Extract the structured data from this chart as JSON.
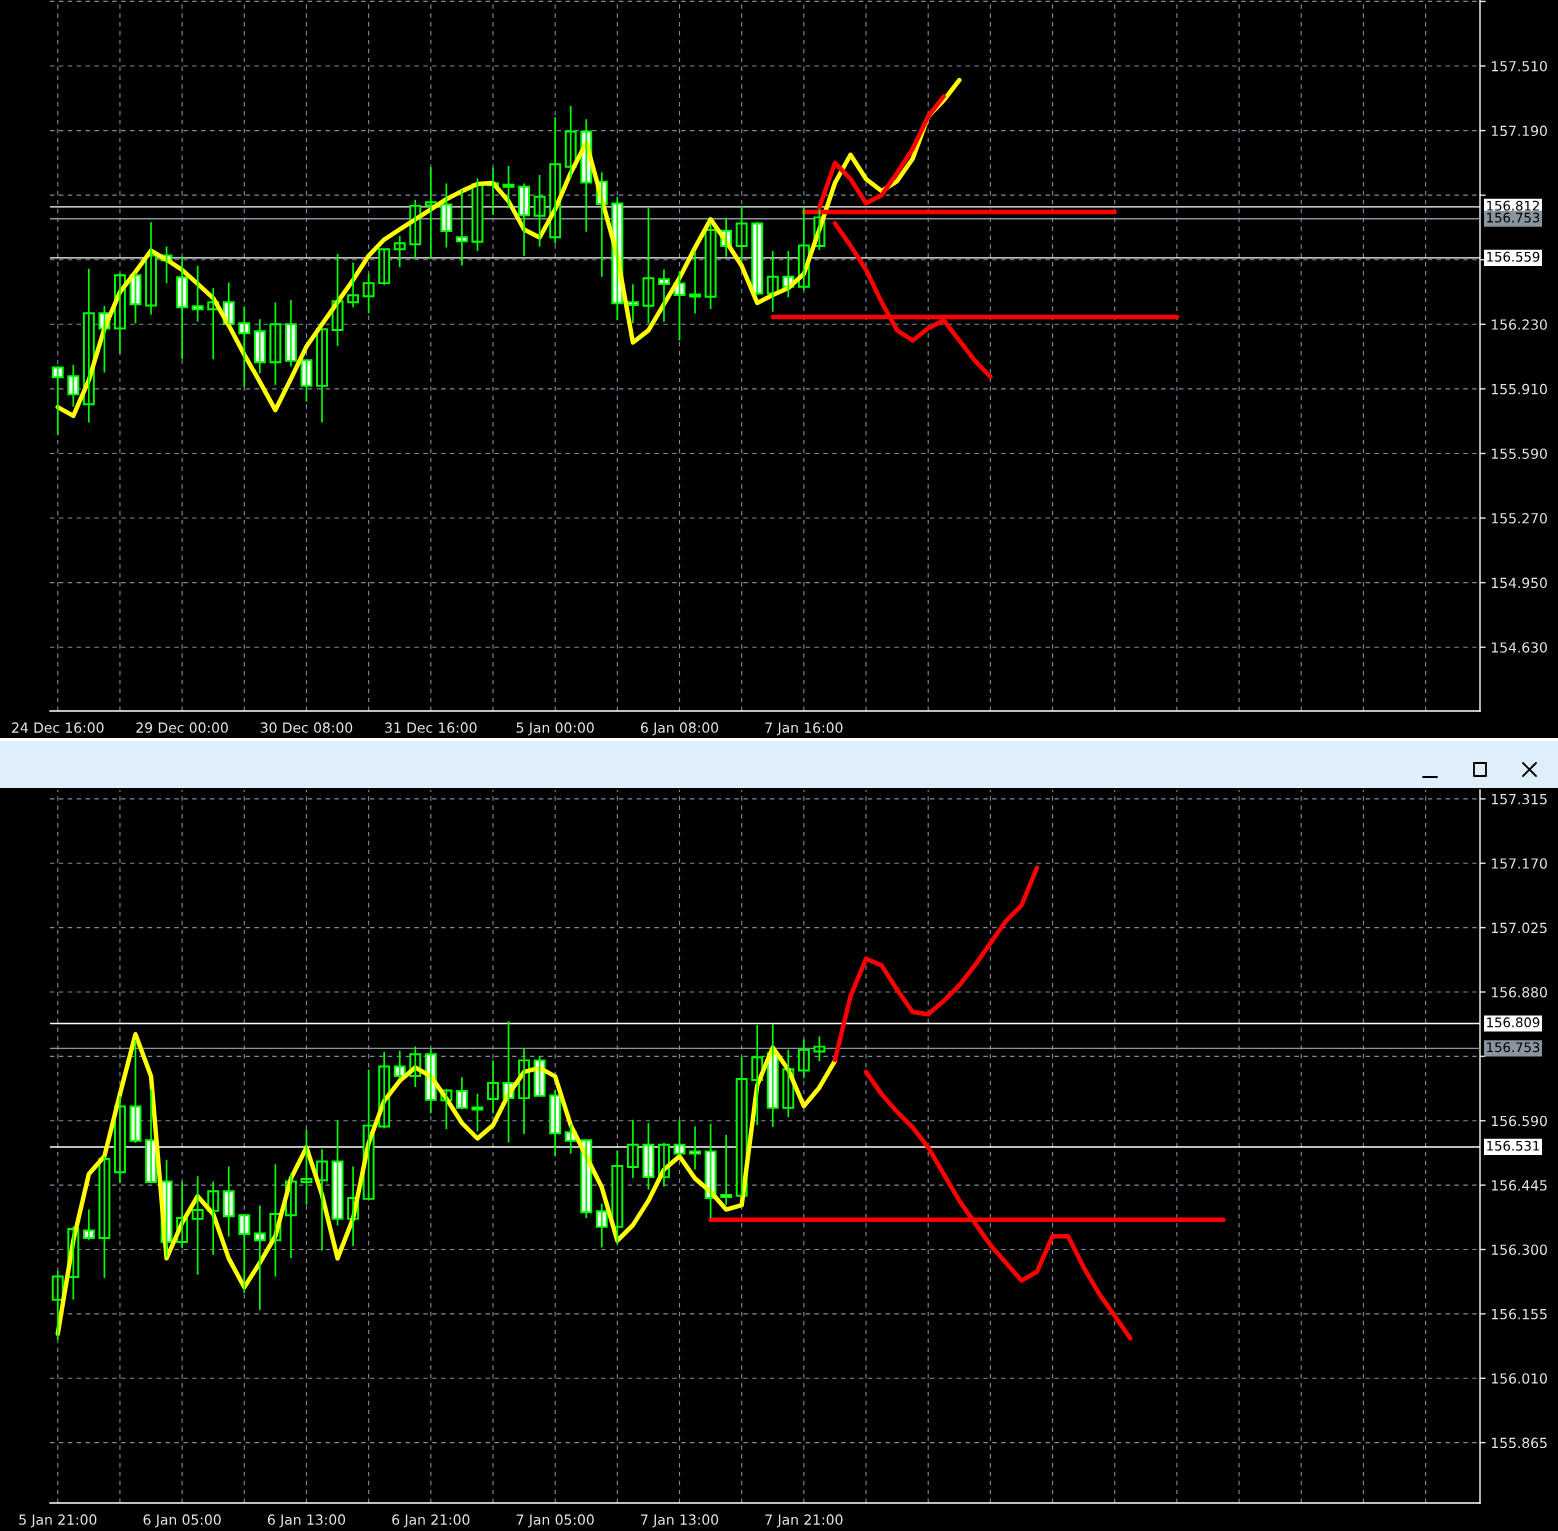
{
  "chart_data": [
    {
      "type": "candlestick",
      "color": "#00ff00",
      "grid": true,
      "categories": [
        "24 Dec 16:00",
        null,
        null,
        null,
        null,
        null,
        null,
        null,
        "29 Dec 00:00",
        null,
        null,
        null,
        null,
        null,
        null,
        null,
        "30 Dec 08:00",
        null,
        null,
        null,
        null,
        null,
        null,
        null,
        "31 Dec 16:00",
        null,
        null,
        null,
        null,
        null,
        null,
        null,
        "5 Jan 00:00",
        null,
        null,
        null,
        null,
        null,
        null,
        null,
        "6 Jan 08:00",
        null,
        null,
        null,
        null,
        null,
        null,
        null,
        "7 Jan 16:00",
        null,
        null,
        null,
        null,
        null,
        null,
        null,
        null,
        null,
        null,
        null,
        null,
        null,
        null,
        null,
        null,
        null,
        null,
        null,
        null,
        null,
        null,
        null,
        null,
        null,
        null,
        null,
        null,
        null,
        null,
        null,
        null,
        null,
        null,
        null,
        null,
        null,
        null,
        null,
        null,
        null,
        null,
        null
      ],
      "ohlc": [
        [
          156.016,
          156.021,
          155.682,
          155.968
        ],
        [
          155.973,
          156.029,
          155.822,
          155.883
        ],
        [
          155.834,
          156.505,
          155.743,
          156.285
        ],
        [
          156.285,
          156.321,
          155.991,
          156.209
        ],
        [
          156.209,
          156.483,
          156.087,
          156.473
        ],
        [
          156.473,
          156.483,
          156.235,
          156.329
        ],
        [
          156.323,
          156.736,
          156.277,
          156.571
        ],
        [
          156.571,
          156.615,
          156.433,
          156.547
        ],
        [
          156.463,
          156.566,
          156.057,
          156.315
        ],
        [
          156.32,
          156.519,
          156.244,
          156.305
        ],
        [
          156.305,
          156.409,
          156.057,
          156.339
        ],
        [
          156.339,
          156.437,
          156.232,
          156.232
        ],
        [
          156.235,
          156.318,
          155.918,
          156.186
        ],
        [
          156.196,
          156.255,
          155.988,
          156.042
        ],
        [
          156.042,
          156.338,
          155.93,
          156.23
        ],
        [
          156.23,
          156.351,
          156.021,
          156.049
        ],
        [
          156.052,
          156.054,
          155.847,
          155.925
        ],
        [
          155.925,
          156.206,
          155.743,
          156.206
        ],
        [
          156.202,
          156.579,
          156.123,
          156.344
        ],
        [
          156.339,
          156.536,
          156.315,
          156.374
        ],
        [
          156.369,
          156.48,
          156.285,
          156.434
        ],
        [
          156.434,
          156.602,
          156.424,
          156.602
        ],
        [
          156.602,
          156.668,
          156.513,
          156.632
        ],
        [
          156.627,
          156.847,
          156.557,
          156.817
        ],
        [
          156.819,
          157.008,
          156.557,
          156.835
        ],
        [
          156.824,
          156.928,
          156.611,
          156.692
        ],
        [
          156.661,
          156.895,
          156.521,
          156.641
        ],
        [
          156.639,
          156.953,
          156.593,
          156.924
        ],
        [
          156.929,
          157.006,
          156.772,
          156.919
        ],
        [
          156.922,
          157.014,
          156.805,
          156.912
        ],
        [
          156.912,
          156.928,
          156.568,
          156.77
        ],
        [
          156.768,
          156.97,
          156.615,
          156.862
        ],
        [
          156.661,
          157.256,
          156.631,
          157.023
        ],
        [
          157.011,
          157.312,
          156.953,
          157.185
        ],
        [
          157.185,
          157.246,
          156.689,
          156.933
        ],
        [
          156.937,
          156.983,
          156.466,
          156.826
        ],
        [
          156.829,
          156.862,
          156.251,
          156.334
        ],
        [
          156.339,
          156.428,
          156.235,
          156.326
        ],
        [
          156.322,
          156.805,
          156.235,
          156.458
        ],
        [
          156.454,
          156.502,
          156.243,
          156.43
        ],
        [
          156.433,
          156.491,
          156.149,
          156.375
        ],
        [
          156.378,
          156.593,
          156.284,
          156.368
        ],
        [
          156.367,
          156.73,
          156.306,
          156.697
        ],
        [
          156.694,
          156.758,
          156.565,
          156.618
        ],
        [
          156.618,
          156.816,
          156.54,
          156.73
        ],
        [
          156.73,
          156.738,
          156.375,
          156.383
        ],
        [
          156.383,
          156.593,
          156.293,
          156.466
        ],
        [
          156.466,
          156.593,
          156.364,
          156.416
        ],
        [
          156.416,
          156.813,
          156.4,
          156.621
        ],
        [
          156.618,
          156.8,
          156.598,
          156.76
        ],
        null,
        null,
        null,
        null,
        null,
        null,
        null,
        null,
        null,
        null,
        null,
        null,
        null,
        null,
        null,
        null,
        null,
        null,
        null,
        null,
        null,
        null,
        null,
        null,
        null,
        null,
        null,
        null,
        null,
        null,
        null,
        null,
        null,
        null,
        null,
        null,
        null,
        null,
        null,
        null,
        null,
        null
      ],
      "ylim": [
        154.314,
        157.837
      ],
      "yticks": [
        {
          "value": 154.63,
          "label": "154.630"
        },
        {
          "value": 154.95,
          "label": "154.950"
        },
        {
          "value": 155.27,
          "label": "155.270"
        },
        {
          "value": 155.59,
          "label": "155.590"
        },
        {
          "value": 155.91,
          "label": "155.910"
        },
        {
          "value": 156.23,
          "label": "156.230"
        },
        {
          "value": 156.55,
          "label": null
        },
        {
          "value": 156.87,
          "label": null
        },
        {
          "value": 157.19,
          "label": "157.190"
        },
        {
          "value": 157.51,
          "label": "157.510"
        },
        {
          "value": 157.83,
          "label": null
        }
      ],
      "ref_lines": [
        {
          "axis": "y",
          "value": 156.812,
          "label": "156.812",
          "color": "#ffffff"
        },
        {
          "axis": "y",
          "value": 156.753,
          "label": "156.753",
          "color": "#8a949e"
        },
        {
          "axis": "y",
          "value": 156.559,
          "label": "156.559",
          "color": "#ffffff"
        }
      ],
      "series": [
        {
          "type": "line",
          "color": "#ffff00",
          "values": [
            155.82,
            155.776,
            155.954,
            156.21,
            156.39,
            156.49,
            156.595,
            156.55,
            156.5,
            156.43,
            156.36,
            156.225,
            156.08,
            155.945,
            155.805,
            155.96,
            156.12,
            156.23,
            156.34,
            156.45,
            156.57,
            156.65,
            156.7,
            156.75,
            156.8,
            156.85,
            156.89,
            156.925,
            156.93,
            156.84,
            156.7,
            156.66,
            156.8,
            156.98,
            157.13,
            156.85,
            156.57,
            156.14,
            156.2,
            156.33,
            156.46,
            156.61,
            156.75,
            156.64,
            156.52,
            156.336,
            156.375,
            156.41,
            156.48,
            156.7,
            156.93,
            157.07,
            156.95,
            156.89,
            156.94,
            157.05,
            157.26,
            157.34,
            157.44,
            null,
            null,
            null,
            null,
            null,
            null,
            null,
            null,
            null,
            null,
            null,
            null,
            null,
            null,
            null,
            null,
            null,
            null,
            null,
            null,
            null,
            null,
            null,
            null,
            null,
            null,
            null,
            null,
            null,
            null,
            null,
            null,
            null
          ]
        },
        {
          "type": "line",
          "color": "#ff0000",
          "values": [
            null,
            null,
            null,
            null,
            null,
            null,
            null,
            null,
            null,
            null,
            null,
            null,
            null,
            null,
            null,
            null,
            null,
            null,
            null,
            null,
            null,
            null,
            null,
            null,
            null,
            null,
            null,
            null,
            null,
            null,
            null,
            null,
            null,
            null,
            null,
            null,
            null,
            null,
            null,
            null,
            null,
            null,
            null,
            null,
            null,
            null,
            null,
            null,
            null,
            156.81,
            157.03,
            156.95,
            156.83,
            156.87,
            156.98,
            157.1,
            157.26,
            157.36,
            null,
            null,
            null,
            null,
            null,
            null,
            null,
            null,
            null,
            null,
            null,
            null,
            null,
            null,
            null,
            null,
            null,
            null,
            null,
            null,
            null,
            null,
            null,
            null,
            null,
            null,
            null,
            null,
            null,
            null,
            null,
            null,
            null,
            null
          ]
        },
        {
          "type": "line",
          "color": "#ff0000",
          "values": [
            null,
            null,
            null,
            null,
            null,
            null,
            null,
            null,
            null,
            null,
            null,
            null,
            null,
            null,
            null,
            null,
            null,
            null,
            null,
            null,
            null,
            null,
            null,
            null,
            null,
            null,
            null,
            null,
            null,
            null,
            null,
            null,
            null,
            null,
            null,
            null,
            null,
            null,
            null,
            null,
            null,
            null,
            null,
            null,
            null,
            null,
            null,
            null,
            null,
            null,
            156.73,
            156.62,
            156.5,
            156.34,
            156.2,
            156.15,
            156.21,
            156.25,
            156.15,
            156.05,
            155.97,
            null,
            null,
            null,
            null,
            null,
            null,
            null,
            null,
            null,
            null,
            null,
            null,
            null,
            null,
            null,
            null,
            null,
            null,
            null,
            null,
            null,
            null,
            null,
            null,
            null,
            null,
            null,
            null,
            null,
            null,
            null
          ]
        },
        {
          "type": "line",
          "color": "#ff0000",
          "values": [
            null,
            null,
            null,
            null,
            null,
            null,
            null,
            null,
            null,
            null,
            null,
            null,
            null,
            null,
            null,
            null,
            null,
            null,
            null,
            null,
            null,
            null,
            null,
            null,
            null,
            null,
            null,
            null,
            null,
            null,
            null,
            null,
            null,
            null,
            null,
            null,
            null,
            null,
            null,
            null,
            null,
            null,
            null,
            null,
            null,
            null,
            null,
            null,
            156.787,
            156.787,
            156.787,
            156.787,
            156.787,
            156.787,
            156.787,
            156.787,
            156.787,
            156.787,
            156.787,
            156.787,
            156.787,
            156.787,
            156.787,
            156.787,
            156.787,
            156.787,
            156.787,
            156.787,
            156.787,
            null,
            null,
            null,
            null,
            null,
            null,
            null,
            null,
            null,
            null,
            null,
            null,
            null,
            null,
            null,
            null,
            null,
            null,
            null,
            null,
            null,
            null,
            null
          ]
        },
        {
          "type": "line",
          "color": "#ff0000",
          "values": [
            null,
            null,
            null,
            null,
            null,
            null,
            null,
            null,
            null,
            null,
            null,
            null,
            null,
            null,
            null,
            null,
            null,
            null,
            null,
            null,
            null,
            null,
            null,
            null,
            null,
            null,
            null,
            null,
            null,
            null,
            null,
            null,
            null,
            null,
            null,
            null,
            null,
            null,
            null,
            null,
            null,
            null,
            null,
            null,
            null,
            null,
            156.266,
            156.266,
            156.266,
            156.266,
            156.266,
            156.266,
            156.266,
            156.266,
            156.266,
            156.266,
            156.266,
            156.266,
            156.266,
            156.266,
            156.266,
            156.266,
            156.266,
            156.266,
            156.266,
            156.266,
            156.266,
            156.266,
            156.266,
            156.266,
            156.266,
            156.266,
            156.266,
            null,
            null,
            null,
            null,
            null,
            null,
            null,
            null,
            null,
            null,
            null,
            null,
            null,
            null,
            null,
            null,
            null,
            null,
            null
          ]
        }
      ]
    },
    {
      "type": "candlestick",
      "color": "#00ff00",
      "grid": true,
      "categories": [
        "5 Jan 21:00",
        null,
        null,
        null,
        null,
        null,
        null,
        null,
        "6 Jan 05:00",
        null,
        null,
        null,
        null,
        null,
        null,
        null,
        "6 Jan 13:00",
        null,
        null,
        null,
        null,
        null,
        null,
        null,
        "6 Jan 21:00",
        null,
        null,
        null,
        null,
        null,
        null,
        null,
        "7 Jan 05:00",
        null,
        null,
        null,
        null,
        null,
        null,
        null,
        "7 Jan 13:00",
        null,
        null,
        null,
        null,
        null,
        null,
        null,
        "7 Jan 21:00",
        null,
        null,
        null,
        null,
        null,
        null,
        null,
        null,
        null,
        null,
        null,
        null,
        null,
        null,
        null,
        null,
        null,
        null,
        null,
        null,
        null,
        null,
        null,
        null,
        null,
        null,
        null,
        null,
        null,
        null,
        null,
        null,
        null,
        null,
        null,
        null,
        null,
        null,
        null,
        null,
        null,
        null,
        null
      ],
      "ohlc": [
        [
          156.187,
          156.251,
          156.097,
          156.239
        ],
        [
          156.238,
          156.352,
          156.187,
          156.346
        ],
        [
          156.343,
          156.39,
          156.322,
          156.326
        ],
        [
          156.326,
          156.51,
          156.236,
          156.504
        ],
        [
          156.474,
          156.645,
          156.45,
          156.622
        ],
        [
          156.622,
          156.772,
          156.54,
          156.545
        ],
        [
          156.546,
          156.66,
          156.45,
          156.452
        ],
        [
          156.453,
          156.502,
          156.284,
          156.317
        ],
        [
          156.317,
          156.453,
          156.303,
          156.371
        ],
        [
          156.369,
          156.465,
          156.243,
          156.389
        ],
        [
          156.387,
          156.453,
          156.288,
          156.431
        ],
        [
          156.431,
          156.487,
          156.329,
          156.375
        ],
        [
          156.377,
          156.378,
          156.202,
          156.335
        ],
        [
          156.336,
          156.399,
          156.164,
          156.321
        ],
        [
          156.321,
          156.492,
          156.239,
          156.38
        ],
        [
          156.377,
          156.471,
          156.281,
          156.453
        ],
        [
          156.452,
          156.57,
          156.401,
          156.459
        ],
        [
          156.456,
          156.526,
          156.298,
          156.498
        ],
        [
          156.498,
          156.59,
          156.354,
          156.369
        ],
        [
          156.369,
          156.487,
          156.308,
          156.416
        ],
        [
          156.414,
          156.705,
          156.412,
          156.579
        ],
        [
          156.577,
          156.745,
          156.573,
          156.712
        ],
        [
          156.712,
          156.748,
          156.686,
          156.691
        ],
        [
          156.691,
          156.757,
          156.666,
          156.74
        ],
        [
          156.74,
          156.754,
          156.607,
          156.637
        ],
        [
          156.636,
          156.661,
          156.571,
          156.658
        ],
        [
          156.657,
          156.688,
          156.616,
          156.619
        ],
        [
          156.62,
          156.651,
          156.566,
          156.615
        ],
        [
          156.639,
          156.726,
          156.607,
          156.675
        ],
        [
          156.675,
          156.814,
          156.541,
          156.641
        ],
        [
          156.641,
          156.754,
          156.56,
          156.726
        ],
        [
          156.726,
          156.735,
          156.645,
          156.646
        ],
        [
          156.647,
          156.659,
          156.51,
          156.562
        ],
        [
          156.564,
          156.581,
          156.516,
          156.545
        ],
        [
          156.546,
          156.547,
          156.371,
          156.384
        ],
        [
          156.386,
          156.403,
          156.305,
          156.351
        ],
        [
          156.351,
          156.523,
          156.311,
          156.488
        ],
        [
          156.486,
          156.592,
          156.461,
          156.536
        ],
        [
          156.536,
          156.585,
          156.435,
          156.463
        ],
        [
          156.463,
          156.54,
          156.442,
          156.536
        ],
        [
          156.536,
          156.592,
          156.513,
          156.516
        ],
        [
          156.521,
          156.577,
          156.48,
          156.516
        ],
        [
          156.521,
          156.583,
          156.371,
          156.416
        ],
        [
          156.423,
          156.558,
          156.401,
          156.418
        ],
        [
          156.421,
          156.735,
          156.42,
          156.684
        ],
        [
          156.682,
          156.806,
          156.58,
          156.733
        ],
        [
          156.742,
          156.808,
          156.576,
          156.619
        ],
        [
          156.619,
          156.75,
          156.598,
          156.706
        ],
        [
          156.703,
          156.773,
          156.686,
          156.75
        ],
        [
          156.746,
          156.78,
          156.724,
          156.757
        ],
        null,
        null,
        null,
        null,
        null,
        null,
        null,
        null,
        null,
        null,
        null,
        null,
        null,
        null,
        null,
        null,
        null,
        null,
        null,
        null,
        null,
        null,
        null,
        null,
        null,
        null,
        null,
        null,
        null,
        null,
        null,
        null,
        null,
        null,
        null,
        null,
        null,
        null,
        null,
        null,
        null,
        null
      ],
      "ylim": [
        155.729,
        157.335
      ],
      "yticks": [
        {
          "value": 155.865,
          "label": "155.865"
        },
        {
          "value": 156.01,
          "label": "156.010"
        },
        {
          "value": 156.155,
          "label": "156.155"
        },
        {
          "value": 156.3,
          "label": "156.300"
        },
        {
          "value": 156.445,
          "label": "156.445"
        },
        {
          "value": 156.59,
          "label": "156.590"
        },
        {
          "value": 156.735,
          "label": null
        },
        {
          "value": 156.88,
          "label": "156.880"
        },
        {
          "value": 157.025,
          "label": "157.025"
        },
        {
          "value": 157.17,
          "label": "157.170"
        },
        {
          "value": 157.315,
          "label": "157.315"
        }
      ],
      "ref_lines": [
        {
          "axis": "y",
          "value": 156.809,
          "label": "156.809",
          "color": "#ffffff"
        },
        {
          "axis": "y",
          "value": 156.753,
          "label": "156.753",
          "color": "#8a949e"
        },
        {
          "axis": "y",
          "value": 156.531,
          "label": "156.531",
          "color": "#ffffff"
        }
      ],
      "series": [
        {
          "type": "line",
          "color": "#ffff00",
          "values": [
            156.11,
            156.32,
            156.47,
            156.51,
            156.65,
            156.785,
            156.69,
            156.28,
            156.36,
            156.42,
            156.38,
            156.28,
            156.215,
            156.27,
            156.33,
            156.46,
            156.53,
            156.423,
            156.28,
            156.37,
            156.54,
            156.635,
            156.68,
            156.71,
            156.69,
            156.64,
            156.585,
            156.55,
            156.58,
            156.65,
            156.7,
            156.709,
            156.69,
            156.58,
            156.51,
            156.44,
            156.32,
            156.355,
            156.41,
            156.48,
            156.51,
            156.46,
            156.43,
            156.39,
            156.4,
            156.67,
            156.755,
            156.705,
            156.623,
            156.665,
            156.725,
            null,
            null,
            null,
            null,
            null,
            null,
            null,
            null,
            null,
            null,
            null,
            null,
            null,
            null,
            null,
            null,
            null,
            null,
            null,
            null,
            null,
            null,
            null,
            null,
            null,
            null,
            null,
            null,
            null,
            null,
            null,
            null,
            null,
            null,
            null,
            null,
            null,
            null,
            null,
            null,
            null
          ]
        },
        {
          "type": "line",
          "color": "#ff0000",
          "values": [
            null,
            null,
            null,
            null,
            null,
            null,
            null,
            null,
            null,
            null,
            null,
            null,
            null,
            null,
            null,
            null,
            null,
            null,
            null,
            null,
            null,
            null,
            null,
            null,
            null,
            null,
            null,
            null,
            null,
            null,
            null,
            null,
            null,
            null,
            null,
            null,
            null,
            null,
            null,
            null,
            null,
            null,
            null,
            null,
            null,
            null,
            null,
            null,
            null,
            null,
            156.727,
            156.87,
            156.955,
            156.94,
            156.885,
            156.835,
            156.83,
            156.86,
            156.895,
            156.94,
            156.99,
            157.04,
            157.075,
            157.16,
            null,
            null,
            null,
            null,
            null,
            null,
            null,
            null,
            null,
            null,
            null,
            null,
            null,
            null,
            null,
            null,
            null,
            null,
            null,
            null,
            null,
            null,
            null,
            null,
            null,
            null,
            null,
            null
          ]
        },
        {
          "type": "line",
          "color": "#ff0000",
          "values": [
            null,
            null,
            null,
            null,
            null,
            null,
            null,
            null,
            null,
            null,
            null,
            null,
            null,
            null,
            null,
            null,
            null,
            null,
            null,
            null,
            null,
            null,
            null,
            null,
            null,
            null,
            null,
            null,
            null,
            null,
            null,
            null,
            null,
            null,
            null,
            null,
            null,
            null,
            null,
            null,
            null,
            null,
            null,
            null,
            null,
            null,
            null,
            null,
            null,
            null,
            null,
            null,
            156.7,
            156.65,
            156.61,
            156.575,
            156.53,
            156.47,
            156.41,
            156.36,
            156.31,
            156.27,
            156.23,
            156.25,
            156.33,
            156.33,
            156.26,
            156.2,
            156.15,
            156.1,
            null,
            null,
            null,
            null,
            null,
            null,
            null,
            null,
            null,
            null,
            null,
            null,
            null,
            null,
            null,
            null,
            null,
            null,
            null,
            null,
            null,
            null
          ]
        },
        {
          "type": "line",
          "color": "#ff0000",
          "values": [
            null,
            null,
            null,
            null,
            null,
            null,
            null,
            null,
            null,
            null,
            null,
            null,
            null,
            null,
            null,
            null,
            null,
            null,
            null,
            null,
            null,
            null,
            null,
            null,
            null,
            null,
            null,
            null,
            null,
            null,
            null,
            null,
            null,
            null,
            null,
            null,
            null,
            null,
            null,
            null,
            null,
            null,
            156.367,
            156.367,
            156.367,
            156.367,
            156.367,
            156.367,
            156.367,
            156.367,
            156.367,
            156.367,
            156.367,
            156.367,
            156.367,
            156.367,
            156.367,
            156.367,
            156.367,
            156.367,
            156.367,
            156.367,
            156.367,
            156.367,
            156.367,
            156.367,
            156.367,
            156.367,
            156.367,
            156.367,
            156.367,
            156.367,
            156.367,
            156.367,
            156.367,
            156.367,
            null,
            null,
            null,
            null,
            null,
            null,
            null,
            null,
            null,
            null,
            null,
            null,
            null,
            null,
            null,
            null
          ]
        }
      ]
    }
  ]
}
